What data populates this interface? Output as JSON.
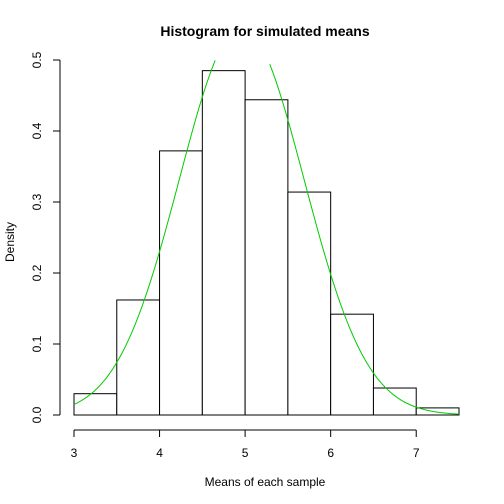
{
  "chart_data": {
    "type": "bar",
    "title": "Histogram for simulated means",
    "xlabel": "Means of each sample",
    "ylabel": "Density",
    "xlim": [
      3,
      7.5
    ],
    "ylim": [
      0,
      0.5
    ],
    "x_ticks": [
      3,
      4,
      5,
      6,
      7
    ],
    "y_ticks": [
      0.0,
      0.1,
      0.2,
      0.3,
      0.4,
      0.5
    ],
    "x_tick_labels": [
      "3",
      "4",
      "5",
      "6",
      "7"
    ],
    "y_tick_labels": [
      "0.0",
      "0.1",
      "0.2",
      "0.3",
      "0.4",
      "0.5"
    ],
    "grid": false,
    "bins": [
      {
        "start": 3.0,
        "end": 3.5,
        "density": 0.03
      },
      {
        "start": 3.5,
        "end": 4.0,
        "density": 0.162
      },
      {
        "start": 4.0,
        "end": 4.5,
        "density": 0.372
      },
      {
        "start": 4.5,
        "end": 5.0,
        "density": 0.485
      },
      {
        "start": 5.0,
        "end": 5.5,
        "density": 0.444
      },
      {
        "start": 5.5,
        "end": 6.0,
        "density": 0.314
      },
      {
        "start": 6.0,
        "end": 6.5,
        "density": 0.142
      },
      {
        "start": 6.5,
        "end": 7.0,
        "density": 0.038
      },
      {
        "start": 7.0,
        "end": 7.5,
        "density": 0.01
      }
    ],
    "curve": {
      "type": "normal-density",
      "mean": 4.96,
      "sd": 0.73,
      "x_range": [
        3,
        7.5
      ],
      "color": "#00cc00"
    },
    "bar_fill": "#ffffff",
    "bar_stroke": "#000000"
  }
}
